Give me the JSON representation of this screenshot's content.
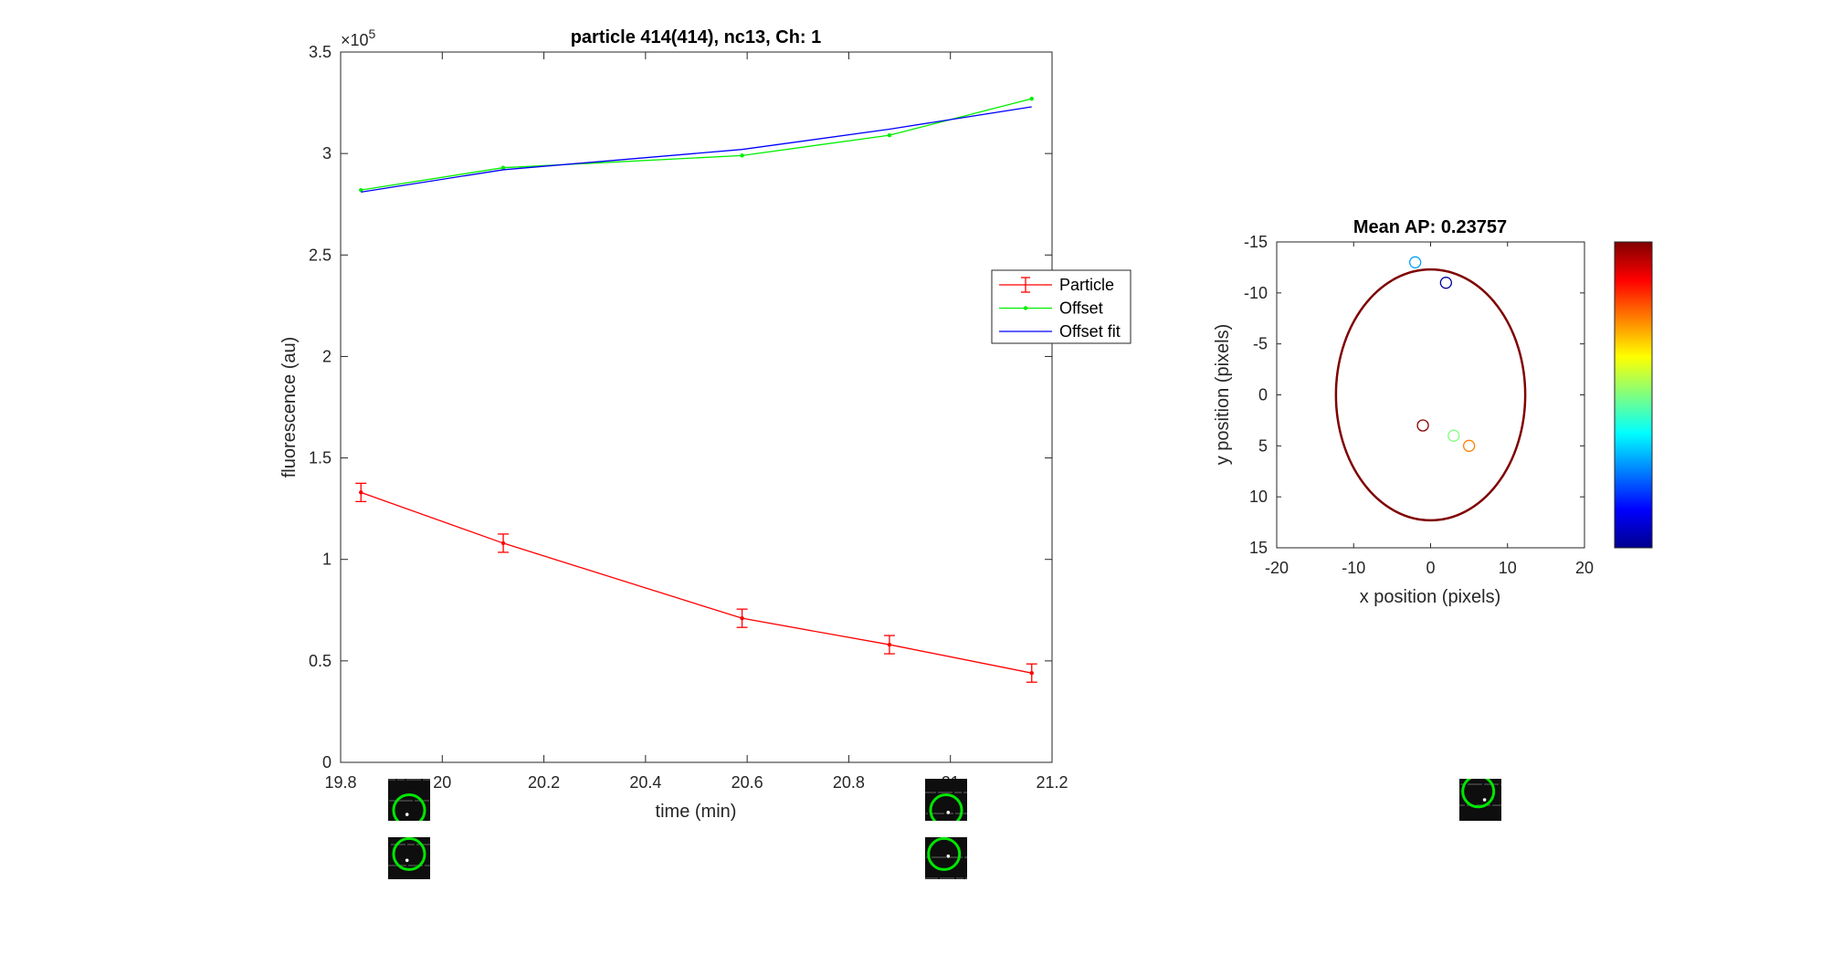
{
  "chart_data": [
    {
      "type": "line",
      "title": "particle 414(414), nc13, Ch: 1",
      "xlabel": "time (min)",
      "ylabel": "fluorescence (au)",
      "y_exponent_label": "×10",
      "y_exponent_power": "5",
      "xlim": [
        19.8,
        21.2
      ],
      "ylim": [
        0,
        350000
      ],
      "x_ticks": [
        19.8,
        20,
        20.2,
        20.4,
        20.6,
        20.8,
        21,
        21.2
      ],
      "x_tick_labels": [
        "19.8",
        "20",
        "20.2",
        "20.4",
        "20.6",
        "20.8",
        "21",
        "21.2"
      ],
      "y_ticks": [
        0,
        50000,
        100000,
        150000,
        200000,
        250000,
        300000,
        350000
      ],
      "y_tick_labels": [
        "0",
        "0.5",
        "1",
        "1.5",
        "2",
        "2.5",
        "3",
        "3.5"
      ],
      "grid": false,
      "legend_placement": "right",
      "series": [
        {
          "name": "Particle",
          "color": "#ff0000",
          "x": [
            19.84,
            20.12,
            20.59,
            20.88,
            21.16
          ],
          "y": [
            133000,
            108000,
            71000,
            58000,
            44000
          ],
          "error": [
            4500,
            4500,
            4500,
            4500,
            4500
          ]
        },
        {
          "name": "Offset",
          "color": "#00ee00",
          "x": [
            19.84,
            20.12,
            20.59,
            20.88,
            21.16
          ],
          "y": [
            282000,
            293000,
            299000,
            309000,
            327000
          ]
        },
        {
          "name": "Offset fit",
          "color": "#0000ff",
          "x": [
            19.84,
            20.12,
            20.59,
            20.88,
            21.16
          ],
          "y": [
            281000,
            292000,
            302000,
            312000,
            323000
          ]
        }
      ]
    },
    {
      "type": "scatter",
      "title": "Mean AP: 0.23757",
      "xlabel": "x position (pixels)",
      "ylabel": "y position (pixels)",
      "xlim": [
        -20,
        20
      ],
      "ylim": [
        -15,
        15
      ],
      "y_reversed": true,
      "x_ticks": [
        -20,
        -10,
        0,
        10,
        20
      ],
      "x_tick_labels": [
        "-20",
        "-10",
        "0",
        "10",
        "20"
      ],
      "y_ticks": [
        -15,
        -10,
        -5,
        0,
        5,
        10,
        15
      ],
      "y_tick_labels": [
        "-15",
        "-10",
        "-5",
        "0",
        "5",
        "10",
        "15"
      ],
      "colorbar": "jet",
      "ellipse": {
        "cx": 0,
        "cy": 0,
        "rx": 12.3,
        "ry": 12.3,
        "color": "#7f0000"
      },
      "points": [
        {
          "x": -2,
          "y": -13,
          "color": "#00a0ff"
        },
        {
          "x": 2,
          "y": -11,
          "color": "#0000a0"
        },
        {
          "x": -1,
          "y": 3,
          "color": "#8b0000"
        },
        {
          "x": 3,
          "y": 4,
          "color": "#80ff80"
        },
        {
          "x": 5,
          "y": 5,
          "color": "#ff8000"
        }
      ]
    }
  ],
  "thumbnails": [
    {
      "spot": [
        0.45,
        0.85
      ],
      "ring": [
        0.5,
        0.75
      ]
    },
    {
      "spot": [
        0.45,
        0.55
      ],
      "ring": [
        0.5,
        0.4
      ]
    },
    {
      "spot": [
        0.55,
        0.8
      ],
      "ring": [
        0.5,
        0.75
      ]
    },
    {
      "spot": [
        0.55,
        0.45
      ],
      "ring": [
        0.45,
        0.4
      ]
    },
    {
      "spot": [
        0.6,
        0.5
      ],
      "ring": [
        0.45,
        0.3
      ]
    }
  ]
}
